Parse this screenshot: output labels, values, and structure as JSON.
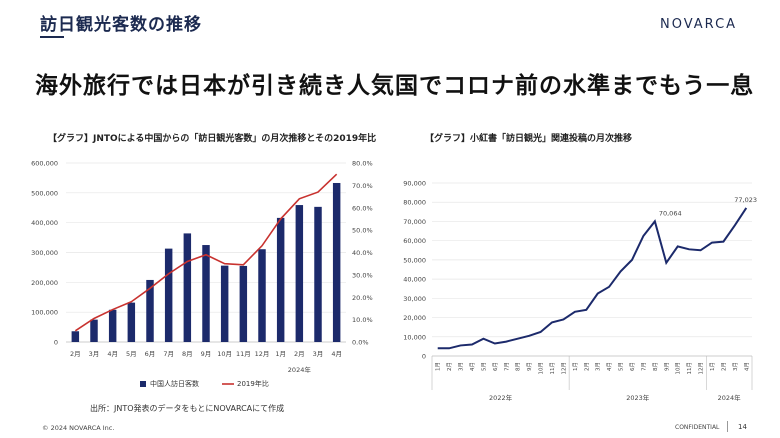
{
  "header": {
    "section_title": "訪日観光客数の推移",
    "logo": "NOVARCA"
  },
  "headline": "海外旅行では日本が引き続き人気国でコロナ前の水準までもう一息",
  "footer": {
    "source": "出所：JNTO発表のデータをもとにNOVARCAにて作成",
    "copyright": "© 2024 NOVARCA Inc.",
    "confidential": "CONFIDENTIAL",
    "page": "14"
  },
  "chart_data": [
    {
      "type": "bar",
      "title": "【グラフ】JNTOによる中国からの「訪日観光客数」の月次推移とその2019年比",
      "categories": [
        "2月",
        "3月",
        "4月",
        "5月",
        "6月",
        "7月",
        "8月",
        "9月",
        "10月",
        "11月",
        "12月",
        "1月",
        "2月",
        "3月",
        "4月"
      ],
      "year_label": "2024年",
      "series": [
        {
          "name": "中国人訪日客数",
          "type": "bar",
          "color": "#1c2a6b",
          "values": [
            36000,
            75000,
            108000,
            132000,
            208000,
            313000,
            364000,
            325000,
            256000,
            255000,
            311000,
            416000,
            459000,
            453000,
            533000
          ]
        },
        {
          "name": "2019年比",
          "type": "line",
          "axis": "right",
          "color": "#c8322f",
          "values": [
            5.0,
            10.5,
            14.5,
            18.0,
            24.0,
            30.5,
            36.0,
            39.0,
            35.0,
            34.5,
            43.0,
            55.0,
            64.0,
            67.0,
            75.0
          ]
        }
      ],
      "y_left": {
        "min": 0,
        "max": 600000,
        "step": 100000,
        "ticks": [
          "0",
          "100,000",
          "200,000",
          "300,000",
          "400,000",
          "500,000",
          "600,000"
        ]
      },
      "y_right": {
        "min": 0,
        "max": 80,
        "step": 10,
        "ticks": [
          "0.0%",
          "10.0%",
          "20.0%",
          "30.0%",
          "40.0%",
          "50.0%",
          "60.0%",
          "70.0%",
          "80.0%"
        ]
      },
      "grid": true,
      "legend": "bottom"
    },
    {
      "type": "line",
      "title": "【グラフ】小紅書「訪日観光」関連投稿の月次推移",
      "categories": [
        "1月",
        "2月",
        "3月",
        "4月",
        "5月",
        "6月",
        "7月",
        "8月",
        "9月",
        "10月",
        "11月",
        "12月",
        "1月",
        "2月",
        "3月",
        "4月",
        "5月",
        "6月",
        "7月",
        "8月",
        "9月",
        "10月",
        "11月",
        "12月",
        "1月",
        "2月",
        "3月",
        "4月"
      ],
      "year_groups": [
        {
          "label": "2022年",
          "from": 0,
          "to": 11
        },
        {
          "label": "2023年",
          "from": 12,
          "to": 23
        },
        {
          "label": "2024年",
          "from": 24,
          "to": 27
        }
      ],
      "series": [
        {
          "color": "#1c2a6b",
          "values": [
            4000,
            4000,
            5500,
            6000,
            9000,
            6500,
            7500,
            9000,
            10500,
            12500,
            17500,
            19000,
            23000,
            24000,
            32500,
            36000,
            44000,
            50000,
            62500,
            70064,
            48500,
            57000,
            55500,
            55000,
            59000,
            59500,
            68000,
            77023
          ]
        }
      ],
      "y": {
        "min": 0,
        "max": 90000,
        "step": 10000,
        "ticks": [
          "0",
          "10,000",
          "20,000",
          "30,000",
          "40,000",
          "50,000",
          "60,000",
          "70,000",
          "80,000",
          "90,000"
        ]
      },
      "annotations": [
        {
          "index": 19,
          "text": "70,064"
        },
        {
          "index": 27,
          "text": "77,023"
        }
      ],
      "grid": true
    }
  ]
}
